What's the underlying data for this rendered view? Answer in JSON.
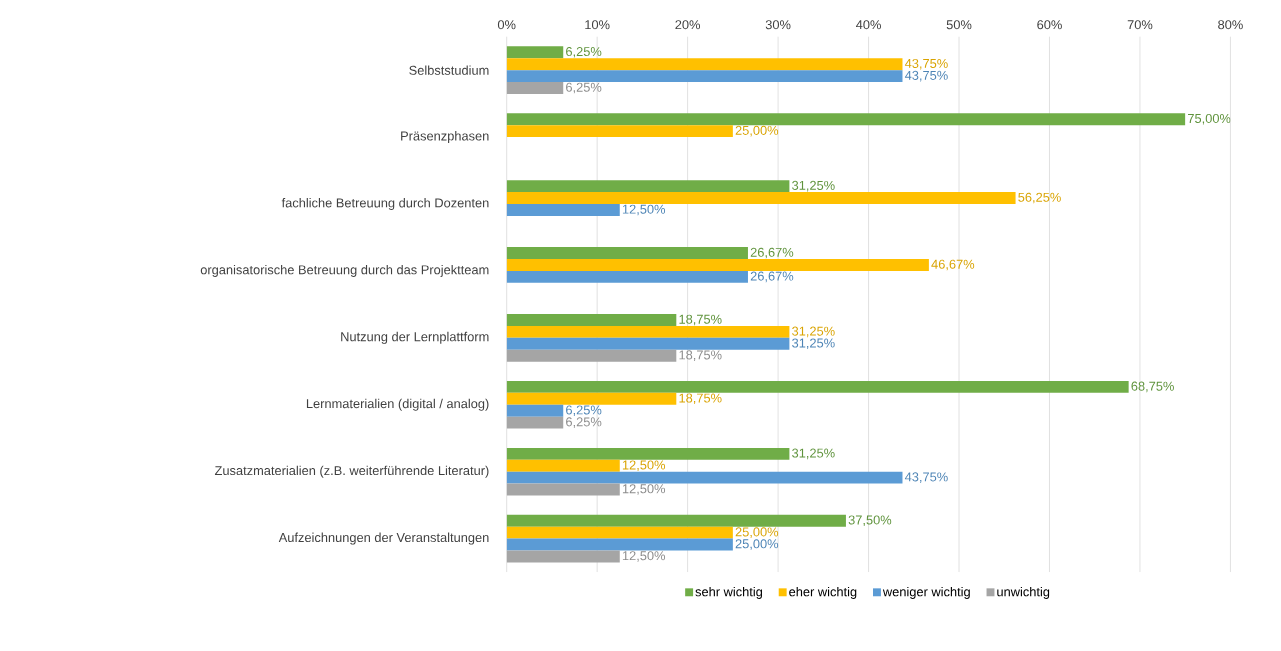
{
  "chart_data": {
    "type": "bar",
    "orientation": "horizontal",
    "categories": [
      "Selbststudium",
      "Präsenzphasen",
      "fachliche Betreuung durch Dozenten",
      "organisatorische Betreuung durch das Projektteam",
      "Nutzung der Lernplattform",
      "Lernmaterialien (digital / analog)",
      "Zusatzmaterialien (z.B. weiterführende Literatur)",
      "Aufzeichnungen der Veranstaltungen"
    ],
    "series": [
      {
        "name": "sehr wichtig",
        "color": "#70ad47",
        "values": [
          6.25,
          75,
          31.25,
          26.67,
          18.75,
          68.75,
          31.25,
          37.5
        ],
        "value_labels": [
          "6,25%",
          "75,00%",
          "31,25%",
          "26,67%",
          "18,75%",
          "68,75%",
          "31,25%",
          "37,50%"
        ]
      },
      {
        "name": "eher wichtig",
        "color": "#ffc000",
        "values": [
          43.75,
          25,
          56.25,
          46.67,
          31.25,
          18.75,
          12.5,
          25
        ],
        "value_labels": [
          "43,75%",
          "25,00%",
          "56,25%",
          "46,67%",
          "31,25%",
          "18,75%",
          "12,50%",
          "25,00%"
        ]
      },
      {
        "name": "weniger wichtig",
        "color": "#5b9bd5",
        "values": [
          43.75,
          null,
          12.5,
          26.67,
          31.25,
          6.25,
          43.75,
          25
        ],
        "value_labels": [
          "43,75%",
          null,
          "12,50%",
          "26,67%",
          "31,25%",
          "6,25%",
          "43,75%",
          "25,00%"
        ]
      },
      {
        "name": "unwichtig",
        "color": "#a5a5a5",
        "values": [
          6.25,
          null,
          null,
          null,
          18.75,
          6.25,
          12.5,
          12.5
        ],
        "value_labels": [
          "6,25%",
          null,
          null,
          null,
          "18,75%",
          "6,25%",
          "12,50%",
          "12,50%"
        ]
      }
    ],
    "xlim": [
      0,
      80
    ],
    "xticks": [
      {
        "value": 0,
        "label": "0%"
      },
      {
        "value": 10,
        "label": "10%"
      },
      {
        "value": 20,
        "label": "20%"
      },
      {
        "value": 30,
        "label": "30%"
      },
      {
        "value": 40,
        "label": "40%"
      },
      {
        "value": 50,
        "label": "50%"
      },
      {
        "value": 60,
        "label": "60%"
      },
      {
        "value": 70,
        "label": "70%"
      },
      {
        "value": 80,
        "label": "80%"
      }
    ],
    "grid": "x",
    "legend": "bottom"
  }
}
